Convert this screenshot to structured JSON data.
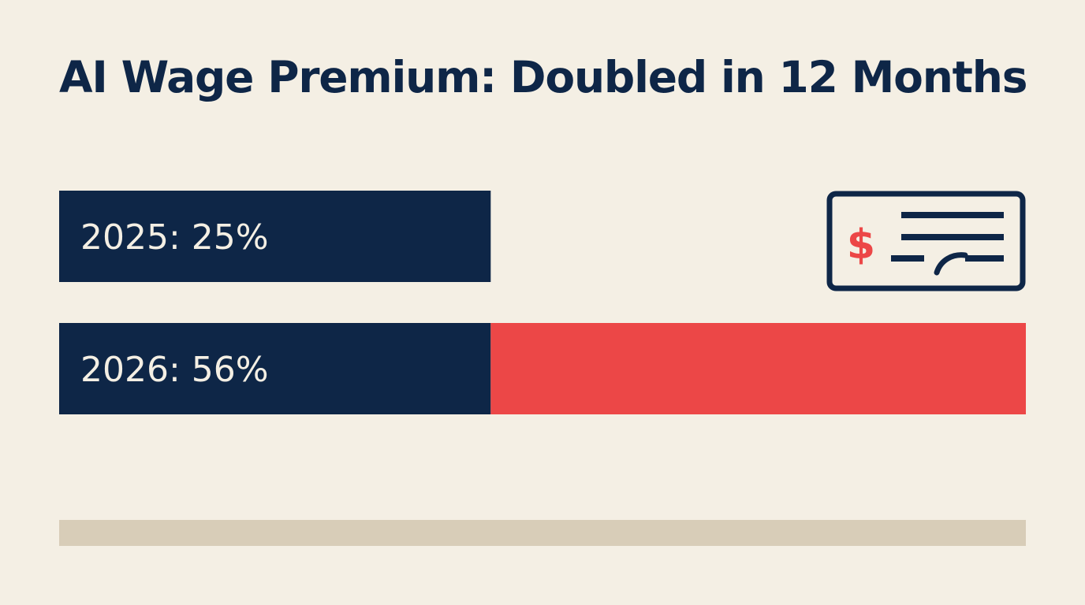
{
  "colors": {
    "background": "#f4efe4",
    "navy": "#0e2647",
    "accent": "#ec4747",
    "track": "#d8cdb8",
    "label_text": "#f4efe4"
  },
  "icon": {
    "name": "paycheck-icon",
    "symbol": "$"
  },
  "chart_data": {
    "type": "bar",
    "orientation": "horizontal",
    "title": "AI Wage Premium: Doubled in 12 Months",
    "categories": [
      "2025",
      "2026"
    ],
    "values": [
      25,
      56
    ],
    "unit": "%",
    "labels": [
      "2025: 25%",
      "2026: 56%"
    ],
    "segments": [
      {
        "category": "2026",
        "base": 0,
        "value": 25,
        "color": "navy"
      },
      {
        "category": "2026",
        "base": 25,
        "value": 31,
        "color": "accent"
      }
    ],
    "xlim": [
      0,
      56
    ],
    "grid": false,
    "legend": "none"
  }
}
